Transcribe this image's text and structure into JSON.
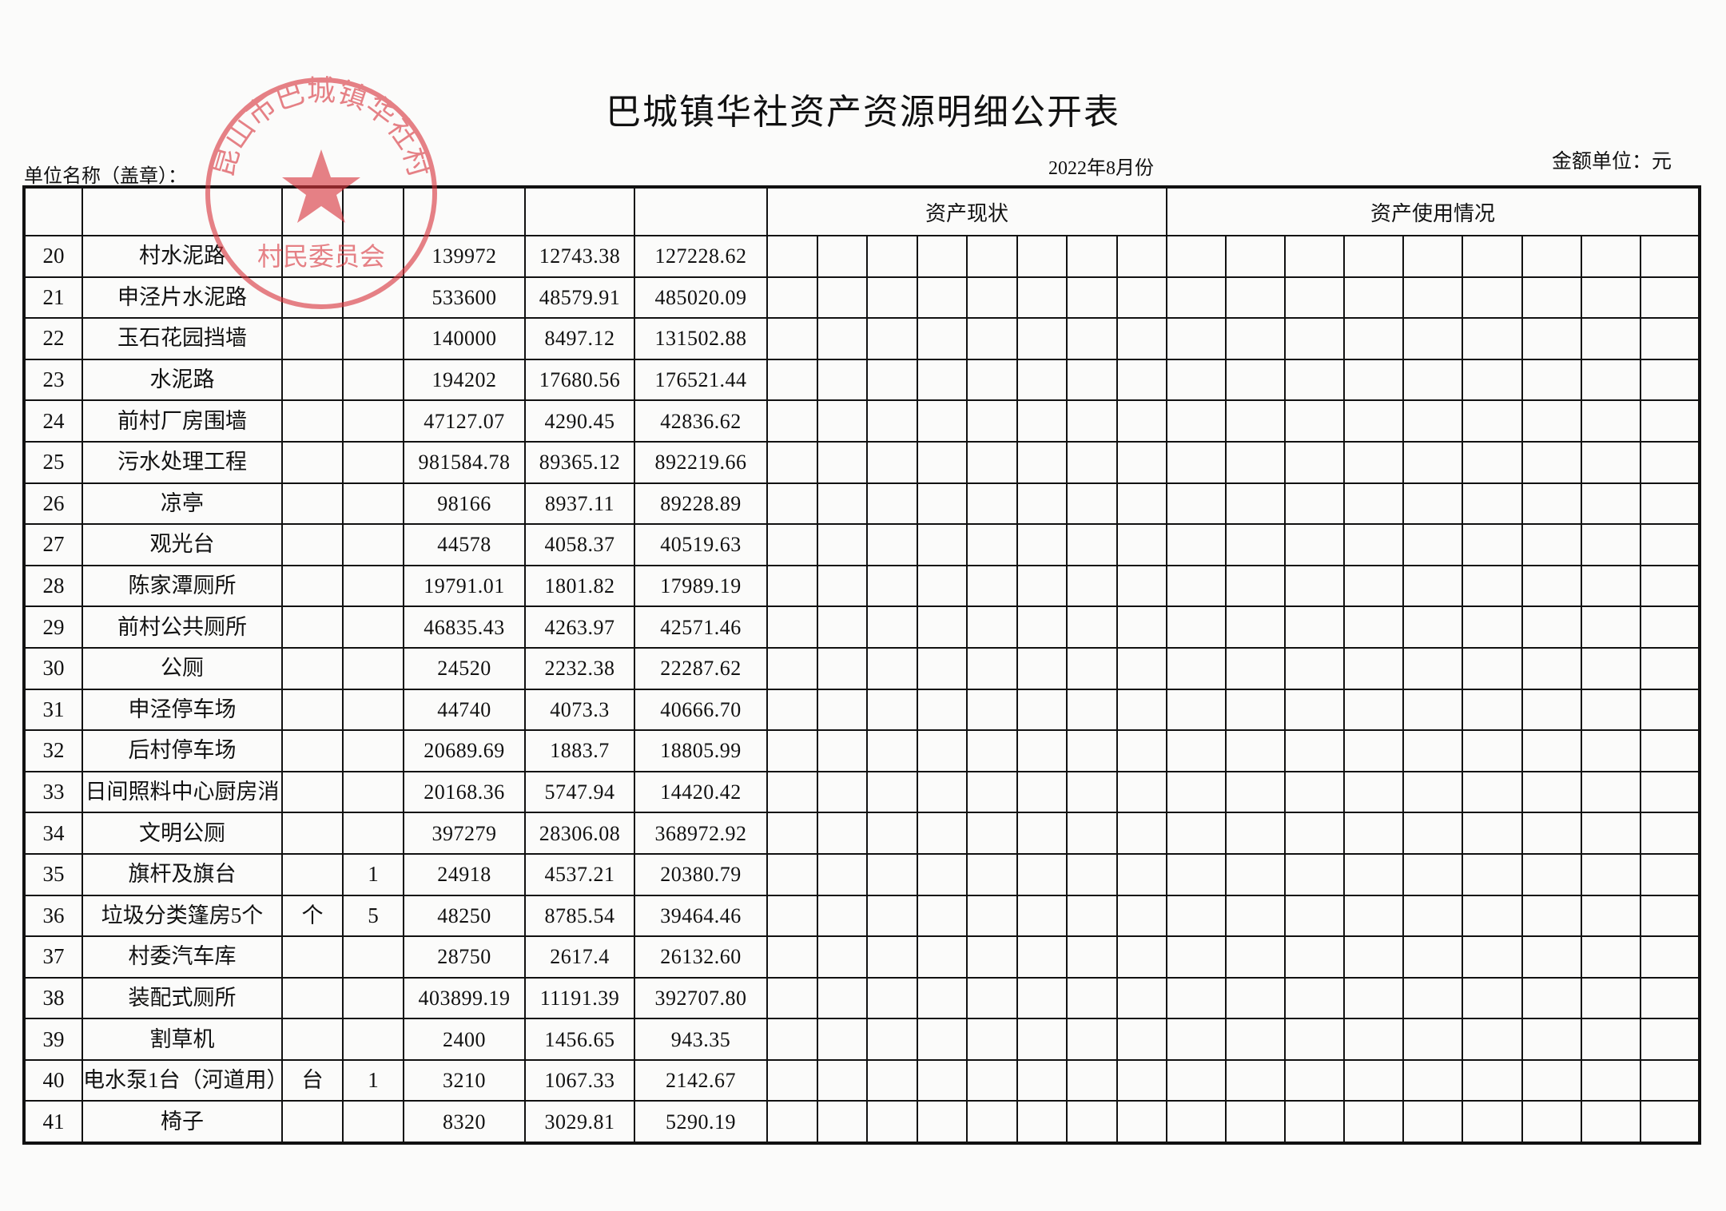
{
  "title": "巴城镇华社资产资源明细公开表",
  "unit_label": "单位名称（盖章）：",
  "period": "2022年8月份",
  "currency_unit": "金额单位：元",
  "header": {
    "asset_status": "资产现状",
    "asset_usage": "资产使用情况"
  },
  "stamp": {
    "ring_text": "昆山市巴城镇华社村",
    "bottom_text": "村民委员会",
    "color": "#d9363e"
  },
  "rows": [
    {
      "no": "20",
      "name": "村水泥路",
      "unit": "",
      "qty": "",
      "original": "139972",
      "depreciation": "12743.38",
      "net": "127228.62"
    },
    {
      "no": "21",
      "name": "申泾片水泥路",
      "unit": "",
      "qty": "",
      "original": "533600",
      "depreciation": "48579.91",
      "net": "485020.09"
    },
    {
      "no": "22",
      "name": "玉石花园挡墙",
      "unit": "",
      "qty": "",
      "original": "140000",
      "depreciation": "8497.12",
      "net": "131502.88"
    },
    {
      "no": "23",
      "name": "水泥路",
      "unit": "",
      "qty": "",
      "original": "194202",
      "depreciation": "17680.56",
      "net": "176521.44"
    },
    {
      "no": "24",
      "name": "前村厂房围墙",
      "unit": "",
      "qty": "",
      "original": "47127.07",
      "depreciation": "4290.45",
      "net": "42836.62"
    },
    {
      "no": "25",
      "name": "污水处理工程",
      "unit": "",
      "qty": "",
      "original": "981584.78",
      "depreciation": "89365.12",
      "net": "892219.66"
    },
    {
      "no": "26",
      "name": "凉亭",
      "unit": "",
      "qty": "",
      "original": "98166",
      "depreciation": "8937.11",
      "net": "89228.89"
    },
    {
      "no": "27",
      "name": "观光台",
      "unit": "",
      "qty": "",
      "original": "44578",
      "depreciation": "4058.37",
      "net": "40519.63"
    },
    {
      "no": "28",
      "name": "陈家潭厕所",
      "unit": "",
      "qty": "",
      "original": "19791.01",
      "depreciation": "1801.82",
      "net": "17989.19"
    },
    {
      "no": "29",
      "name": "前村公共厕所",
      "unit": "",
      "qty": "",
      "original": "46835.43",
      "depreciation": "4263.97",
      "net": "42571.46"
    },
    {
      "no": "30",
      "name": "公厕",
      "unit": "",
      "qty": "",
      "original": "24520",
      "depreciation": "2232.38",
      "net": "22287.62"
    },
    {
      "no": "31",
      "name": "申泾停车场",
      "unit": "",
      "qty": "",
      "original": "44740",
      "depreciation": "4073.3",
      "net": "40666.70"
    },
    {
      "no": "32",
      "name": "后村停车场",
      "unit": "",
      "qty": "",
      "original": "20689.69",
      "depreciation": "1883.7",
      "net": "18805.99"
    },
    {
      "no": "33",
      "name": "日间照料中心厨房消防系统",
      "unit": "",
      "qty": "",
      "original": "20168.36",
      "depreciation": "5747.94",
      "net": "14420.42"
    },
    {
      "no": "34",
      "name": "文明公厕",
      "unit": "",
      "qty": "",
      "original": "397279",
      "depreciation": "28306.08",
      "net": "368972.92"
    },
    {
      "no": "35",
      "name": "旗杆及旗台",
      "unit": "",
      "qty": "1",
      "original": "24918",
      "depreciation": "4537.21",
      "net": "20380.79"
    },
    {
      "no": "36",
      "name": "垃圾分类篷房5个",
      "unit": "个",
      "qty": "5",
      "original": "48250",
      "depreciation": "8785.54",
      "net": "39464.46"
    },
    {
      "no": "37",
      "name": "村委汽车库",
      "unit": "",
      "qty": "",
      "original": "28750",
      "depreciation": "2617.4",
      "net": "26132.60"
    },
    {
      "no": "38",
      "name": "装配式厕所",
      "unit": "",
      "qty": "",
      "original": "403899.19",
      "depreciation": "11191.39",
      "net": "392707.80"
    },
    {
      "no": "39",
      "name": "割草机",
      "unit": "",
      "qty": "",
      "original": "2400",
      "depreciation": "1456.65",
      "net": "943.35"
    },
    {
      "no": "40",
      "name": "电水泵1台（河道用）",
      "unit": "台",
      "qty": "1",
      "original": "3210",
      "depreciation": "1067.33",
      "net": "2142.67"
    },
    {
      "no": "41",
      "name": "椅子",
      "unit": "",
      "qty": "",
      "original": "8320",
      "depreciation": "3029.81",
      "net": "5290.19"
    }
  ]
}
